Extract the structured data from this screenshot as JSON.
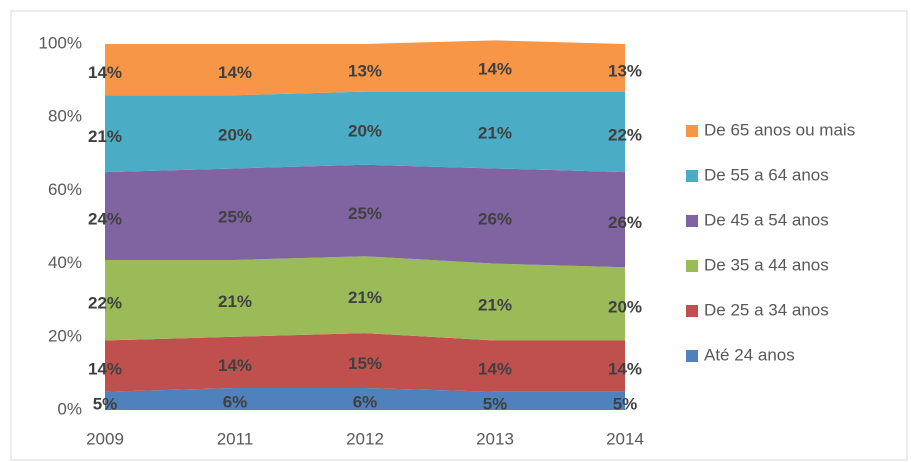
{
  "chart_data": {
    "type": "area",
    "stacked": true,
    "categories": [
      "2009",
      "2011",
      "2012",
      "2013",
      "2014"
    ],
    "ylim": [
      0,
      100
    ],
    "yticks": [
      {
        "value": 0,
        "label": "0%"
      },
      {
        "value": 20,
        "label": "20%"
      },
      {
        "value": 40,
        "label": "40%"
      },
      {
        "value": 60,
        "label": "60%"
      },
      {
        "value": 80,
        "label": "80%"
      },
      {
        "value": 100,
        "label": "100%"
      }
    ],
    "legend": "right",
    "series": [
      {
        "name": "Até 24 anos",
        "color": "#4f81bd",
        "values": [
          5,
          6,
          6,
          5,
          5
        ],
        "value_labels": [
          "5%",
          "6%",
          "6%",
          "5%",
          "5%"
        ]
      },
      {
        "name": "De 25 a 34 anos",
        "color": "#c0504d",
        "values": [
          14,
          14,
          15,
          14,
          14
        ],
        "value_labels": [
          "14%",
          "14%",
          "15%",
          "14%",
          "14%"
        ]
      },
      {
        "name": "De 35 a 44 anos",
        "color": "#9bbb59",
        "values": [
          22,
          21,
          21,
          21,
          20
        ],
        "value_labels": [
          "22%",
          "21%",
          "21%",
          "21%",
          "20%"
        ]
      },
      {
        "name": "De 45 a 54 anos",
        "color": "#8064a2",
        "values": [
          24,
          25,
          25,
          26,
          26
        ],
        "value_labels": [
          "24%",
          "25%",
          "25%",
          "26%",
          "26%"
        ]
      },
      {
        "name": "De 55 a 64 anos",
        "color": "#4bacc6",
        "values": [
          21,
          20,
          20,
          21,
          22
        ],
        "value_labels": [
          "21%",
          "20%",
          "20%",
          "21%",
          "22%"
        ]
      },
      {
        "name": "De 65 anos ou mais",
        "color": "#f79646",
        "values": [
          14,
          14,
          13,
          14,
          13
        ],
        "value_labels": [
          "14%",
          "14%",
          "13%",
          "14%",
          "13%"
        ]
      }
    ]
  }
}
